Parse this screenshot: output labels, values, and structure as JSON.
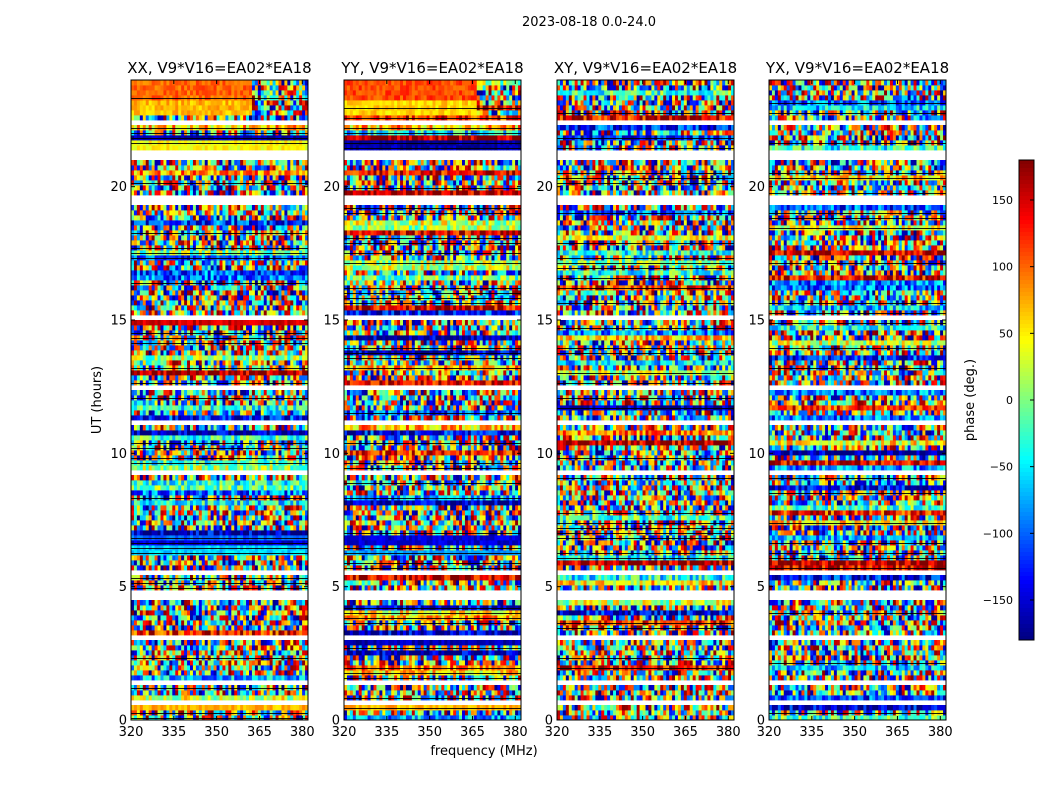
{
  "chart_data": {
    "type": "heatmap",
    "suptitle": "2023-08-18 0.0-24.0",
    "xlabel": "frequency (MHz)",
    "ylabel": "UT (hours)",
    "xlim": [
      320,
      382
    ],
    "ylim": [
      0,
      24
    ],
    "x_ticks": [
      "320",
      "335",
      "350",
      "365",
      "380"
    ],
    "x_tick_values": [
      320,
      335,
      350,
      365,
      380
    ],
    "y_ticks": [
      "0",
      "5",
      "10",
      "15",
      "20"
    ],
    "y_tick_values": [
      0,
      5,
      10,
      15,
      20
    ],
    "colorbar": {
      "label": "phase (deg.)",
      "range": [
        -180,
        180
      ],
      "colormap": "jet",
      "ticks": [
        "150",
        "100",
        "50",
        "0",
        "−50",
        "−100",
        "−150"
      ],
      "tick_values": [
        150,
        100,
        50,
        0,
        -50,
        -100,
        -150
      ]
    },
    "panels": [
      {
        "title": "XX, V9*V16=EA02*EA18",
        "coherent_bands": [
          {
            "t0": 23.2,
            "t1": 24.0,
            "phase": 100,
            "f_end": 362
          },
          {
            "t0": 22.7,
            "t1": 23.2,
            "phase": 70,
            "f_end": 362
          },
          {
            "t0": 21.4,
            "t1": 21.7,
            "phase": 45
          },
          {
            "t0": 21.8,
            "t1": 21.95,
            "phase": -160
          },
          {
            "t0": 14.75,
            "t1": 14.9,
            "phase": -150
          },
          {
            "t0": 14.9,
            "t1": 15.0,
            "phase": 150
          },
          {
            "t0": 9.3,
            "t1": 9.45,
            "phase": -150
          },
          {
            "t0": 6.8,
            "t1": 6.95,
            "phase": -100
          },
          {
            "t0": 6.5,
            "t1": 6.8,
            "phase": -150
          },
          {
            "t0": 6.2,
            "t1": 6.5,
            "phase": -60
          },
          {
            "t0": 3.9,
            "t1": 4.0,
            "phase": 140
          },
          {
            "t0": 0.45,
            "t1": 0.6,
            "phase": 70
          }
        ]
      },
      {
        "title": "YY, V9*V16=EA02*EA18",
        "coherent_bands": [
          {
            "t0": 23.2,
            "t1": 24.0,
            "phase": 110,
            "f_end": 366
          },
          {
            "t0": 22.7,
            "t1": 23.2,
            "phase": 60,
            "f_end": 366
          },
          {
            "t0": 21.4,
            "t1": 21.7,
            "phase": -165
          },
          {
            "t0": 15.0,
            "t1": 15.1,
            "phase": 150
          },
          {
            "t0": 14.75,
            "t1": 14.9,
            "phase": -160
          },
          {
            "t0": 9.3,
            "t1": 9.45,
            "phase": -150
          },
          {
            "t0": 6.5,
            "t1": 6.95,
            "phase": -150
          },
          {
            "t0": 6.2,
            "t1": 6.45,
            "phase": -80
          },
          {
            "t0": 2.8,
            "t1": 3.0,
            "phase": -160
          },
          {
            "t0": 0.45,
            "t1": 0.6,
            "phase": 70
          }
        ]
      },
      {
        "title": "XY, V9*V16=EA02*EA18",
        "coherent_bands": []
      },
      {
        "title": "YX, V9*V16=EA02*EA18",
        "coherent_bands": []
      }
    ],
    "flagged_gaps_hours": [
      [
        22.35,
        22.5
      ],
      [
        21.0,
        21.45
      ],
      [
        19.4,
        19.6
      ],
      [
        17.05,
        17.15
      ],
      [
        15.05,
        15.2
      ],
      [
        12.3,
        12.5
      ],
      [
        11.1,
        11.25
      ],
      [
        9.15,
        9.3
      ],
      [
        8.05,
        8.15
      ],
      [
        5.5,
        5.7
      ],
      [
        4.5,
        4.95
      ],
      [
        3.5,
        3.6
      ],
      [
        3.05,
        3.2
      ],
      [
        2.75,
        2.85
      ],
      [
        1.25,
        1.45
      ],
      [
        0.55,
        0.8
      ]
    ]
  }
}
